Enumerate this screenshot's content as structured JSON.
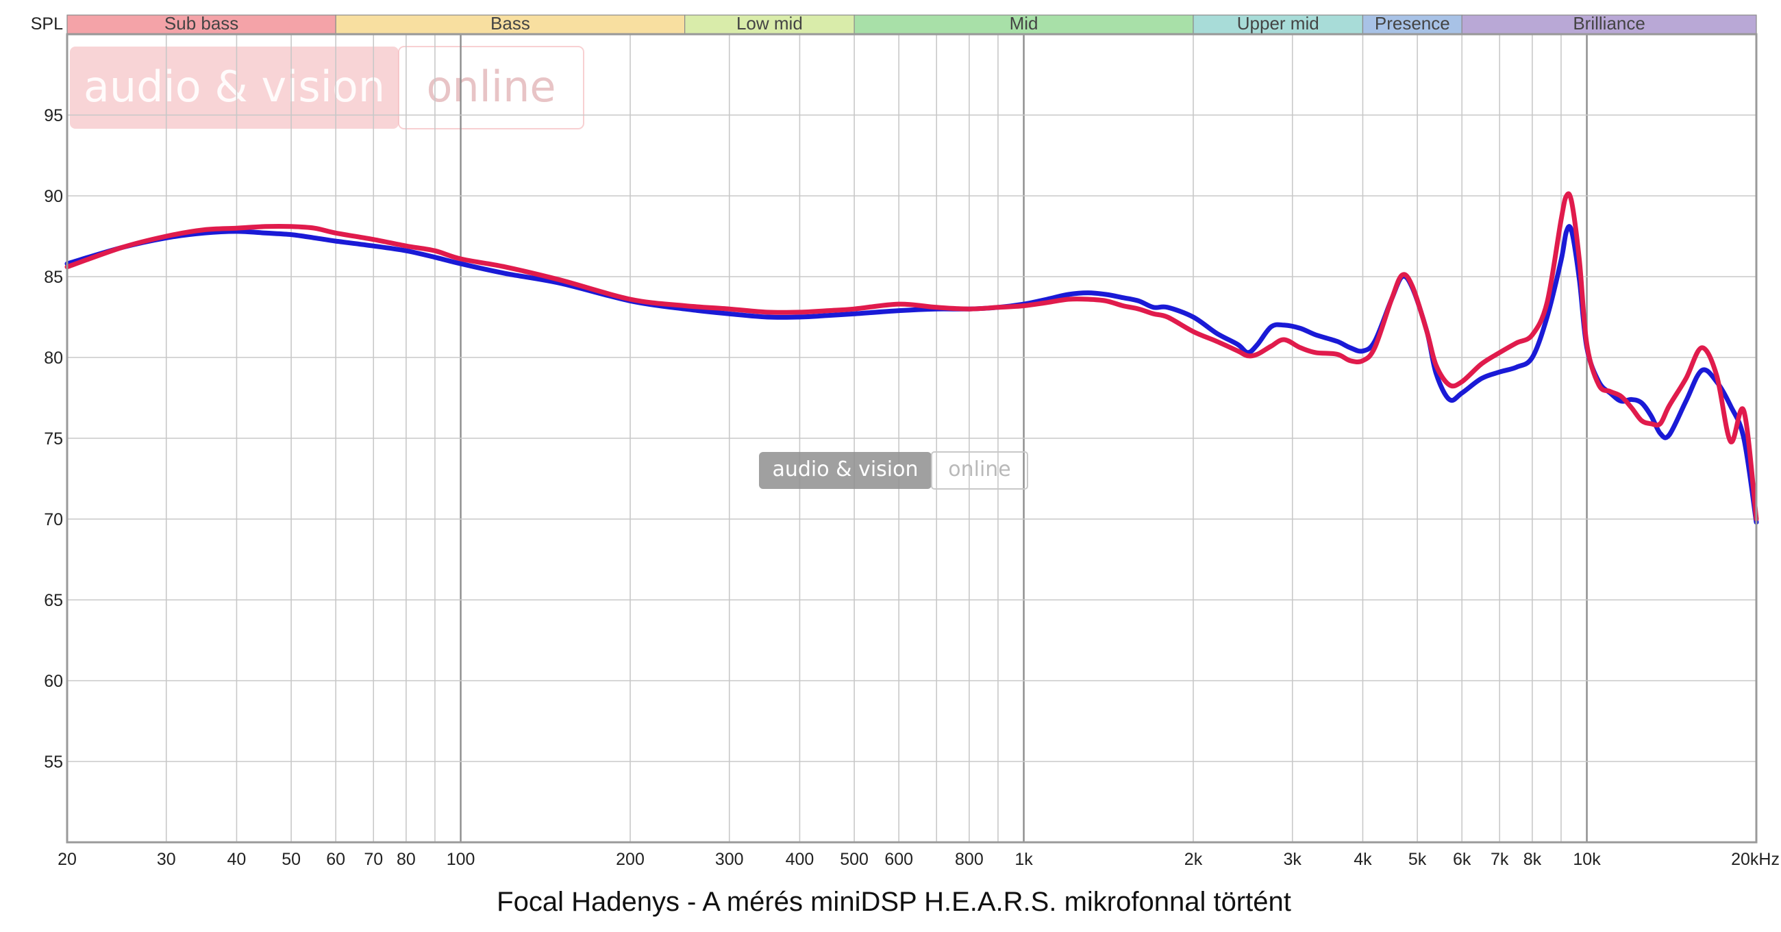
{
  "chart_data": {
    "type": "line",
    "title": "Focal Hadenys - A mérés miniDSP H.E.A.R.S. mikrofonnal történt",
    "ylabel": "SPL",
    "xlabel": "",
    "x_scale": "log",
    "xlim": [
      20,
      20000
    ],
    "ylim": [
      50,
      100
    ],
    "grid": true,
    "legend": "none",
    "y_ticks": [
      55,
      60,
      65,
      70,
      75,
      80,
      85,
      90,
      95
    ],
    "x_ticks": [
      {
        "value": 20,
        "label": "20"
      },
      {
        "value": 30,
        "label": "30"
      },
      {
        "value": 40,
        "label": "40"
      },
      {
        "value": 50,
        "label": "50"
      },
      {
        "value": 60,
        "label": "60"
      },
      {
        "value": 70,
        "label": "70"
      },
      {
        "value": 80,
        "label": "80"
      },
      {
        "value": 100,
        "label": "100"
      },
      {
        "value": 200,
        "label": "200"
      },
      {
        "value": 300,
        "label": "300"
      },
      {
        "value": 400,
        "label": "400"
      },
      {
        "value": 500,
        "label": "500"
      },
      {
        "value": 600,
        "label": "600"
      },
      {
        "value": 800,
        "label": "800"
      },
      {
        "value": 1000,
        "label": "1k"
      },
      {
        "value": 2000,
        "label": "2k"
      },
      {
        "value": 3000,
        "label": "3k"
      },
      {
        "value": 4000,
        "label": "4k"
      },
      {
        "value": 5000,
        "label": "5k"
      },
      {
        "value": 6000,
        "label": "6k"
      },
      {
        "value": 7000,
        "label": "7k"
      },
      {
        "value": 8000,
        "label": "8k"
      },
      {
        "value": 10000,
        "label": "10k"
      },
      {
        "value": 20000,
        "label": "20kHz"
      }
    ],
    "bands": [
      {
        "name": "Sub bass",
        "from": 20,
        "to": 60,
        "color": "#f4a3a8"
      },
      {
        "name": "Bass",
        "from": 60,
        "to": 250,
        "color": "#f8dfa0"
      },
      {
        "name": "Low mid",
        "from": 250,
        "to": 500,
        "color": "#d9ecaa"
      },
      {
        "name": "Mid",
        "from": 500,
        "to": 2000,
        "color": "#a8e0a8"
      },
      {
        "name": "Upper mid",
        "from": 2000,
        "to": 4000,
        "color": "#a8dcd8"
      },
      {
        "name": "Presence",
        "from": 4000,
        "to": 6000,
        "color": "#a8c2e6"
      },
      {
        "name": "Brilliance",
        "from": 6000,
        "to": 20000,
        "color": "#b9a8d6"
      }
    ],
    "series": [
      {
        "color": "#1a1ad6",
        "points": [
          [
            20,
            85.8
          ],
          [
            25,
            86.8
          ],
          [
            30,
            87.4
          ],
          [
            35,
            87.7
          ],
          [
            40,
            87.8
          ],
          [
            45,
            87.7
          ],
          [
            50,
            87.6
          ],
          [
            55,
            87.4
          ],
          [
            60,
            87.2
          ],
          [
            70,
            86.9
          ],
          [
            80,
            86.6
          ],
          [
            90,
            86.2
          ],
          [
            100,
            85.8
          ],
          [
            120,
            85.2
          ],
          [
            150,
            84.6
          ],
          [
            200,
            83.5
          ],
          [
            250,
            83.0
          ],
          [
            300,
            82.7
          ],
          [
            350,
            82.5
          ],
          [
            400,
            82.5
          ],
          [
            450,
            82.6
          ],
          [
            500,
            82.7
          ],
          [
            600,
            82.9
          ],
          [
            700,
            83.0
          ],
          [
            800,
            83.0
          ],
          [
            900,
            83.1
          ],
          [
            1000,
            83.3
          ],
          [
            1100,
            83.6
          ],
          [
            1200,
            83.9
          ],
          [
            1300,
            84.0
          ],
          [
            1400,
            83.9
          ],
          [
            1500,
            83.7
          ],
          [
            1600,
            83.5
          ],
          [
            1700,
            83.1
          ],
          [
            1800,
            83.1
          ],
          [
            2000,
            82.5
          ],
          [
            2200,
            81.5
          ],
          [
            2400,
            80.8
          ],
          [
            2500,
            80.3
          ],
          [
            2600,
            80.8
          ],
          [
            2750,
            81.9
          ],
          [
            2900,
            82.0
          ],
          [
            3100,
            81.8
          ],
          [
            3300,
            81.4
          ],
          [
            3600,
            81.0
          ],
          [
            3800,
            80.6
          ],
          [
            4000,
            80.4
          ],
          [
            4200,
            81.0
          ],
          [
            4500,
            83.6
          ],
          [
            4700,
            85.0
          ],
          [
            4900,
            84.3
          ],
          [
            5200,
            81.6
          ],
          [
            5400,
            79.0
          ],
          [
            5700,
            77.4
          ],
          [
            6000,
            77.8
          ],
          [
            6500,
            78.7
          ],
          [
            7000,
            79.1
          ],
          [
            7500,
            79.4
          ],
          [
            8000,
            80.0
          ],
          [
            8500,
            82.5
          ],
          [
            9000,
            86.0
          ],
          [
            9200,
            87.8
          ],
          [
            9400,
            87.8
          ],
          [
            9700,
            84.8
          ],
          [
            10000,
            80.6
          ],
          [
            10500,
            78.5
          ],
          [
            11000,
            77.8
          ],
          [
            11500,
            77.3
          ],
          [
            12000,
            77.4
          ],
          [
            12500,
            77.2
          ],
          [
            13000,
            76.4
          ],
          [
            13500,
            75.3
          ],
          [
            14000,
            75.2
          ],
          [
            15000,
            77.3
          ],
          [
            16000,
            79.2
          ],
          [
            17000,
            78.5
          ],
          [
            18000,
            77.0
          ],
          [
            19000,
            75.0
          ],
          [
            20000,
            69.8
          ]
        ]
      },
      {
        "color": "#e01b4c",
        "points": [
          [
            20,
            85.6
          ],
          [
            25,
            86.8
          ],
          [
            30,
            87.5
          ],
          [
            35,
            87.9
          ],
          [
            40,
            88.0
          ],
          [
            45,
            88.1
          ],
          [
            50,
            88.1
          ],
          [
            55,
            88.0
          ],
          [
            60,
            87.7
          ],
          [
            70,
            87.3
          ],
          [
            80,
            86.9
          ],
          [
            90,
            86.6
          ],
          [
            100,
            86.1
          ],
          [
            120,
            85.6
          ],
          [
            150,
            84.8
          ],
          [
            200,
            83.6
          ],
          [
            250,
            83.2
          ],
          [
            300,
            83.0
          ],
          [
            350,
            82.8
          ],
          [
            400,
            82.8
          ],
          [
            450,
            82.9
          ],
          [
            500,
            83.0
          ],
          [
            600,
            83.3
          ],
          [
            700,
            83.1
          ],
          [
            800,
            83.0
          ],
          [
            900,
            83.1
          ],
          [
            1000,
            83.2
          ],
          [
            1100,
            83.4
          ],
          [
            1200,
            83.6
          ],
          [
            1300,
            83.6
          ],
          [
            1400,
            83.5
          ],
          [
            1500,
            83.2
          ],
          [
            1600,
            83.0
          ],
          [
            1700,
            82.7
          ],
          [
            1800,
            82.5
          ],
          [
            2000,
            81.6
          ],
          [
            2200,
            81.0
          ],
          [
            2400,
            80.4
          ],
          [
            2500,
            80.1
          ],
          [
            2600,
            80.2
          ],
          [
            2750,
            80.7
          ],
          [
            2900,
            81.1
          ],
          [
            3100,
            80.6
          ],
          [
            3300,
            80.3
          ],
          [
            3600,
            80.2
          ],
          [
            3800,
            79.8
          ],
          [
            4000,
            79.8
          ],
          [
            4200,
            80.6
          ],
          [
            4500,
            83.6
          ],
          [
            4700,
            85.1
          ],
          [
            4900,
            84.4
          ],
          [
            5200,
            81.6
          ],
          [
            5400,
            79.5
          ],
          [
            5700,
            78.3
          ],
          [
            6000,
            78.5
          ],
          [
            6500,
            79.6
          ],
          [
            7000,
            80.3
          ],
          [
            7500,
            80.9
          ],
          [
            8000,
            81.4
          ],
          [
            8500,
            83.4
          ],
          [
            9000,
            88.5
          ],
          [
            9200,
            90.0
          ],
          [
            9400,
            89.6
          ],
          [
            9700,
            86.0
          ],
          [
            10000,
            80.8
          ],
          [
            10500,
            78.3
          ],
          [
            11000,
            77.9
          ],
          [
            11500,
            77.6
          ],
          [
            12000,
            76.9
          ],
          [
            12500,
            76.1
          ],
          [
            13000,
            75.9
          ],
          [
            13500,
            75.9
          ],
          [
            14000,
            77.0
          ],
          [
            15000,
            78.7
          ],
          [
            16000,
            80.6
          ],
          [
            17000,
            78.9
          ],
          [
            18000,
            74.8
          ],
          [
            19000,
            76.7
          ],
          [
            20000,
            70.0
          ]
        ]
      }
    ]
  },
  "watermarks": {
    "top": {
      "brand": "audio & vision",
      "suffix": "online"
    },
    "center": {
      "brand": "audio & vision",
      "suffix": "online"
    }
  }
}
